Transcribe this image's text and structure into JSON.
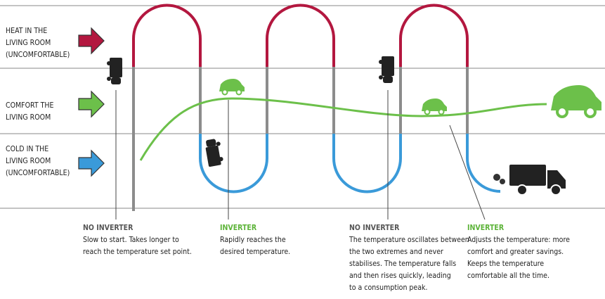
{
  "zones": [
    {
      "lines": [
        "HEAT IN THE",
        "LIVING ROOM",
        "(UNCOMFORTABLE)"
      ]
    },
    {
      "lines": [
        "COMFORT THE",
        "LIVING ROOM"
      ]
    },
    {
      "lines": [
        "COLD IN THE",
        "LIVING ROOM",
        "(UNCOMFORTABLE)"
      ]
    }
  ],
  "notes": [
    {
      "title": "NO INVERTER",
      "lines": [
        "Slow to start. Takes longer to",
        "reach the temperature set point."
      ]
    },
    {
      "title": "INVERTER",
      "lines": [
        "Rapidly reaches the",
        "desired temperature."
      ]
    },
    {
      "title": "NO INVERTER",
      "lines": [
        "The temperature oscillates between",
        "the two extremes and never",
        "stabilises. The temperature falls",
        "and then rises quickly, leading",
        "to a consumption peak."
      ]
    },
    {
      "title": "INVERTER",
      "lines": [
        "Adjusts the temperature: more",
        "comfort and greater savings.",
        "Keeps the temperature",
        "comfortable all the time."
      ]
    }
  ]
}
